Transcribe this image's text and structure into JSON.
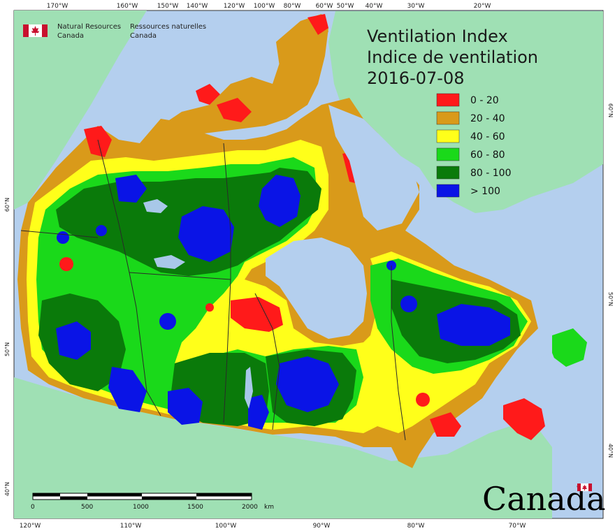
{
  "title": {
    "line1": "Ventilation Index",
    "line2": "Indice de ventilation",
    "date": "2016-07-08"
  },
  "agency": {
    "english_line1": "Natural Resources",
    "english_line2": "Canada",
    "french_line1": "Ressources naturelles",
    "french_line2": "Canada"
  },
  "legend": [
    {
      "label": "0 - 20",
      "color": "#ff1a1a"
    },
    {
      "label": "20 - 40",
      "color": "#d99a1a"
    },
    {
      "label": "40 - 60",
      "color": "#ffff1a"
    },
    {
      "label": "60 - 80",
      "color": "#1ad91a"
    },
    {
      "label": "80 - 100",
      "color": "#0a7a0a"
    },
    {
      "label": "> 100",
      "color": "#0a14e6"
    }
  ],
  "top_ticks": [
    "170°W",
    "160°W",
    "150°W",
    "140°W",
    "120°W",
    "100°W",
    "80°W",
    "60°W",
    "50°W",
    "40°W",
    "30°W",
    "20°W"
  ],
  "bottom_ticks": [
    "120°W",
    "110°W",
    "100°W",
    "90°W",
    "80°W",
    "70°W"
  ],
  "left_ticks": [
    "60°N",
    "50°N",
    "40°N"
  ],
  "right_ticks": [
    "60°N",
    "50°N",
    "40°N"
  ],
  "scale_bar": {
    "labels": [
      "0",
      "500",
      "1000",
      "1500",
      "2000"
    ],
    "unit": "km"
  },
  "wordmark": "Canada",
  "colors": {
    "ocean": "#b4cfee",
    "land": "#9fe0b4",
    "red": "#ff1a1a",
    "orange": "#d99a1a",
    "yellow": "#ffff1a",
    "lightgreen": "#1ad91a",
    "darkgreen": "#0a7a0a",
    "blue": "#0a14e6",
    "lake": "#a8c8e8"
  }
}
